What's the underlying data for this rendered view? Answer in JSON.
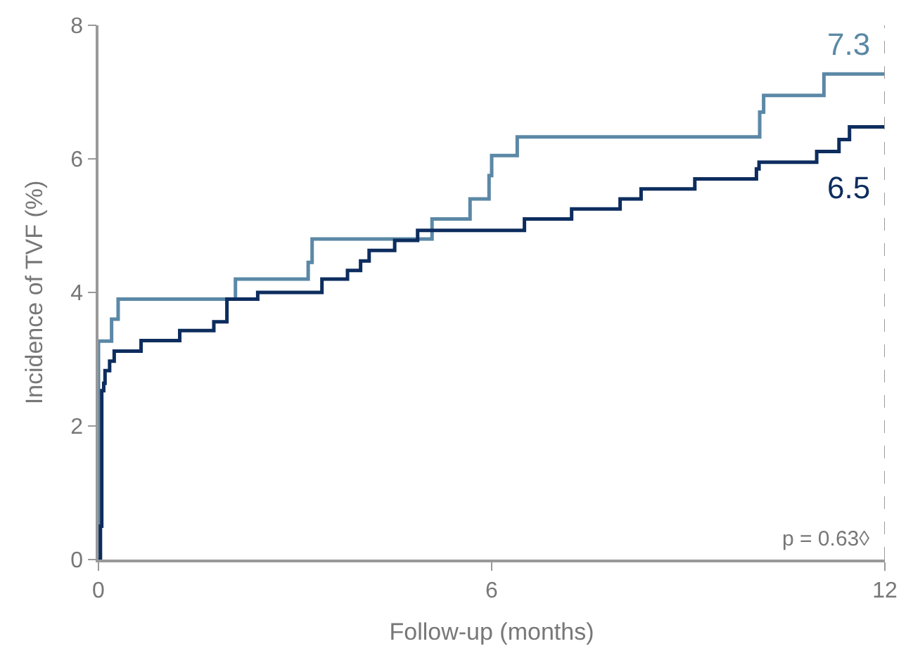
{
  "chart_data": {
    "type": "step",
    "xlabel": "Follow-up (months)",
    "ylabel": "Incidence of TVF (%)",
    "series": [
      {
        "color": "#5b88a6",
        "x": [
          0,
          0,
          0.2,
          0.3,
          2.09,
          3.2,
          3.26,
          5.09,
          5.67,
          5.96,
          6.0,
          6.39,
          10.09,
          10.15,
          11.07,
          12
        ],
        "values": [
          0,
          3.27,
          3.6,
          3.9,
          4.2,
          4.45,
          4.8,
          5.1,
          5.4,
          5.75,
          6.05,
          6.33,
          6.7,
          6.95,
          7.27,
          7.27
        ]
      },
      {
        "color": "#0d2d5e",
        "x": [
          0,
          0.03,
          0.05,
          0.08,
          0.1,
          0.17,
          0.24,
          0.65,
          1.24,
          1.76,
          1.96,
          2.43,
          3.41,
          3.8,
          4.0,
          4.13,
          4.52,
          4.87,
          6.5,
          7.22,
          7.96,
          8.28,
          9.1,
          10.04,
          10.08,
          10.96,
          11.3,
          11.46,
          12
        ],
        "values": [
          0,
          0.5,
          2.53,
          2.64,
          2.83,
          2.97,
          3.12,
          3.28,
          3.43,
          3.56,
          3.9,
          4.0,
          4.2,
          4.33,
          4.47,
          4.63,
          4.78,
          4.93,
          5.1,
          5.25,
          5.4,
          5.55,
          5.7,
          5.85,
          5.95,
          6.11,
          6.29,
          6.48,
          6.48
        ]
      }
    ],
    "annotations": [
      {
        "text": "7.3",
        "x": 12,
        "y": 7.3
      },
      {
        "text": "6.5",
        "x": 12,
        "y": 6.5
      },
      "p = 0.63◊"
    ],
    "ref_lines": [
      {
        "axis": "x",
        "value": 12,
        "color": "#999999",
        "line_style": "dashed"
      }
    ],
    "xlim": [
      0,
      12
    ],
    "xticks": [
      0,
      6,
      12
    ],
    "ylim": [
      0,
      8
    ],
    "yticks": [
      0,
      2,
      4,
      6,
      8
    ],
    "marker": "none",
    "line_style": "solid"
  }
}
